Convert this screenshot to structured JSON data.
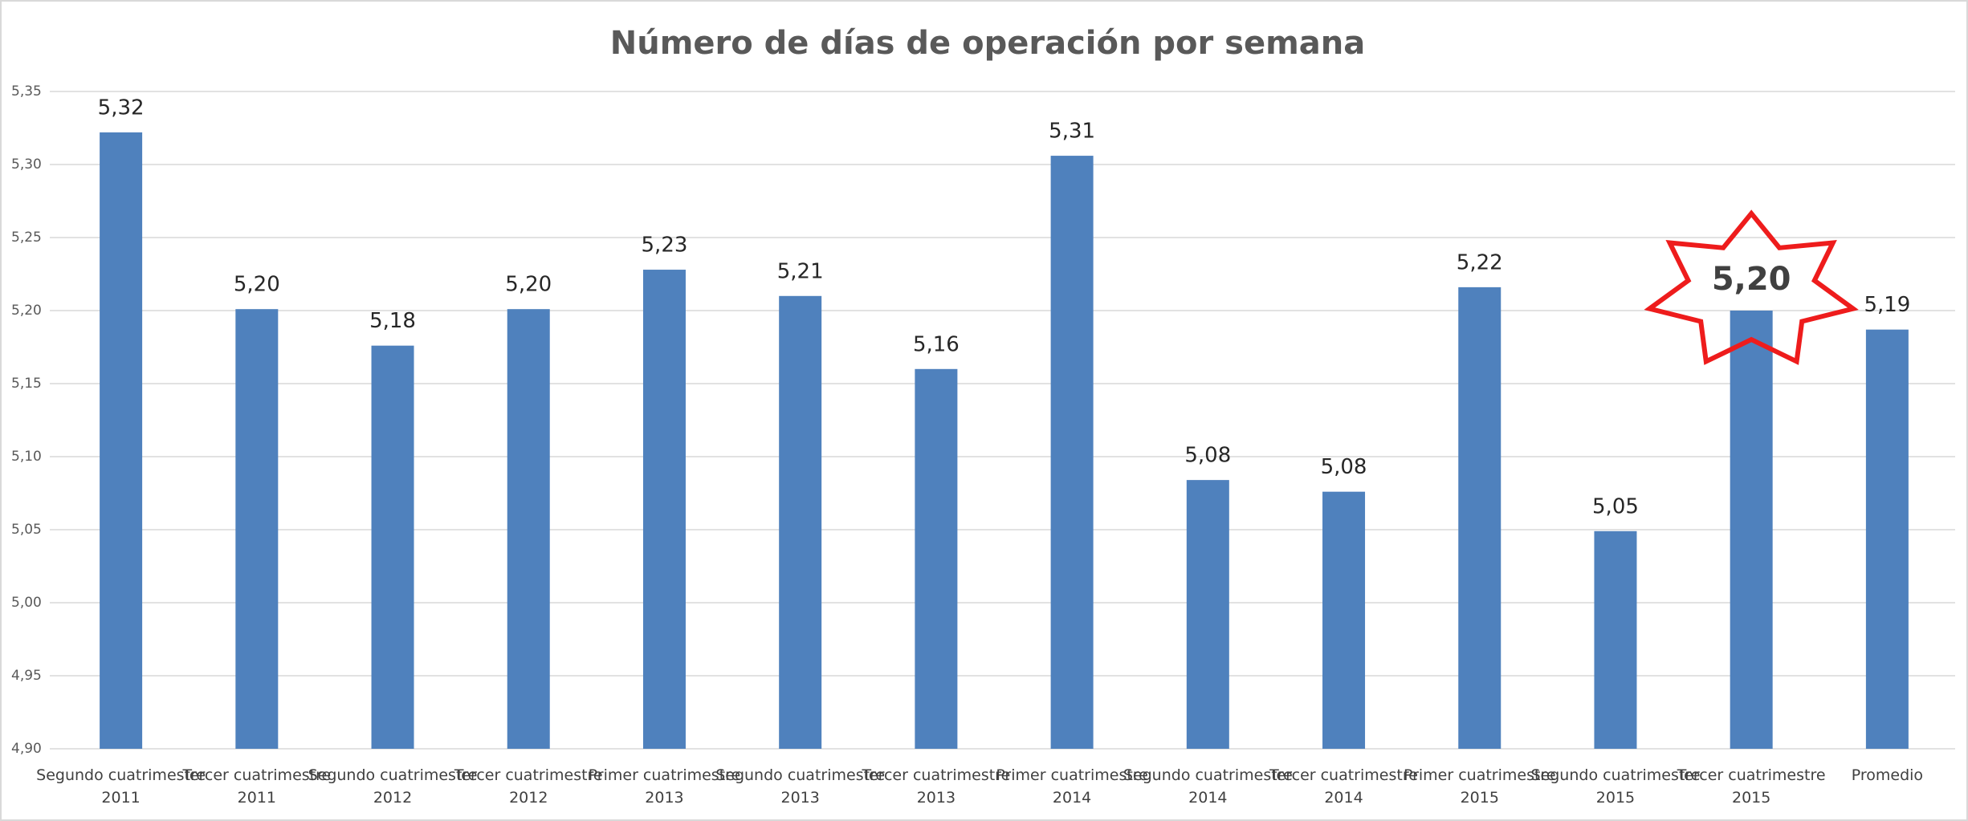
{
  "chart_data": {
    "type": "bar",
    "title": "Número de días de operación por semana",
    "categories": [
      "Segundo cuatrimestre 2011",
      "Tercer cuatrimestre 2011",
      "Segundo cuatrimestre 2012",
      "Tercer cuatrimestre 2012",
      "Primer cuatrimestre 2013",
      "Segundo cuatrimestre 2013",
      "Tercer cuatrimestre 2013",
      "Primer cuatrimestre 2014",
      "Segundo cuatrimestre 2014",
      "Tercer cuatrimestre 2014",
      "Primer cuatrimestre 2015",
      "Segundo cuatrimestre 2015",
      "Tercer cuatrimestre 2015",
      "Promedio"
    ],
    "values": [
      5.322,
      5.201,
      5.176,
      5.201,
      5.228,
      5.21,
      5.16,
      5.306,
      5.084,
      5.076,
      5.216,
      5.049,
      5.2,
      5.187
    ],
    "value_labels": [
      "5,32",
      "5,20",
      "5,18",
      "5,20",
      "5,23",
      "5,21",
      "5,16",
      "5,31",
      "5,08",
      "5,08",
      "5,22",
      "5,05",
      "5,20",
      "5,19"
    ],
    "color": "#4f81bd",
    "ylim": [
      4.9,
      5.35
    ],
    "yticks": [
      {
        "value": 4.9,
        "label": "4,90"
      },
      {
        "value": 4.95,
        "label": "4,95"
      },
      {
        "value": 5.0,
        "label": "5,00"
      },
      {
        "value": 5.05,
        "label": "5,05"
      },
      {
        "value": 5.1,
        "label": "5,10"
      },
      {
        "value": 5.15,
        "label": "5,15"
      },
      {
        "value": 5.2,
        "label": "5,20"
      },
      {
        "value": 5.25,
        "label": "5,25"
      },
      {
        "value": 5.3,
        "label": "5,30"
      },
      {
        "value": 5.35,
        "label": "5,35"
      }
    ],
    "grid": true,
    "highlight_index": 12,
    "highlight_color": "#ee1c1c"
  }
}
